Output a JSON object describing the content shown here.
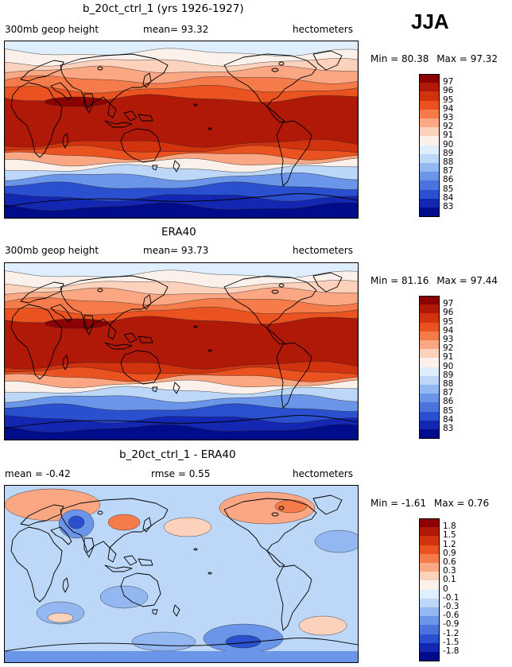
{
  "season": "JJA",
  "panels": [
    {
      "title": "b_20ct_ctrl_1 (yrs 1926-1927)",
      "left_label": "300mb geop height",
      "mid_label": "mean=  93.32",
      "units": "hectometers",
      "min_label": "Min =",
      "min_value": "80.38",
      "max_label": "Max =",
      "max_value": "97.32",
      "levels": [
        "97",
        "96",
        "95",
        "94",
        "93",
        "92",
        "91",
        "90",
        "89",
        "88",
        "87",
        "86",
        "85",
        "84",
        "83"
      ]
    },
    {
      "title": "ERA40",
      "left_label": "300mb geop height",
      "mid_label": "mean=  93.73",
      "units": "hectometers",
      "min_label": "Min =",
      "min_value": "81.16",
      "max_label": "Max =",
      "max_value": "97.44",
      "levels": [
        "97",
        "96",
        "95",
        "94",
        "93",
        "92",
        "91",
        "90",
        "89",
        "88",
        "87",
        "86",
        "85",
        "84",
        "83"
      ]
    },
    {
      "title": "b_20ct_ctrl_1 - ERA40",
      "left_label": "mean =  -0.42",
      "mid_label": "rmse =   0.55",
      "units": "hectometers",
      "min_label": "Min =",
      "min_value": "-1.61",
      "max_label": "Max =",
      "max_value": "0.76",
      "levels": [
        "1.8",
        "1.5",
        "1.2",
        "0.9",
        "0.6",
        "0.3",
        "0.1",
        "0",
        "-0.1",
        "-0.3",
        "-0.6",
        "-0.9",
        "-1.2",
        "-1.5",
        "-1.8"
      ]
    }
  ],
  "colors": {
    "scale": [
      "#8b0000",
      "#b01808",
      "#d2330f",
      "#ea5320",
      "#f67b4a",
      "#fba783",
      "#fdd2bd",
      "#fbf1ea",
      "#dfeefc",
      "#bcd7f8",
      "#93b8f1",
      "#6b95e8",
      "#4a73de",
      "#2a4fcf",
      "#1327b3",
      "#000c8a"
    ]
  }
}
